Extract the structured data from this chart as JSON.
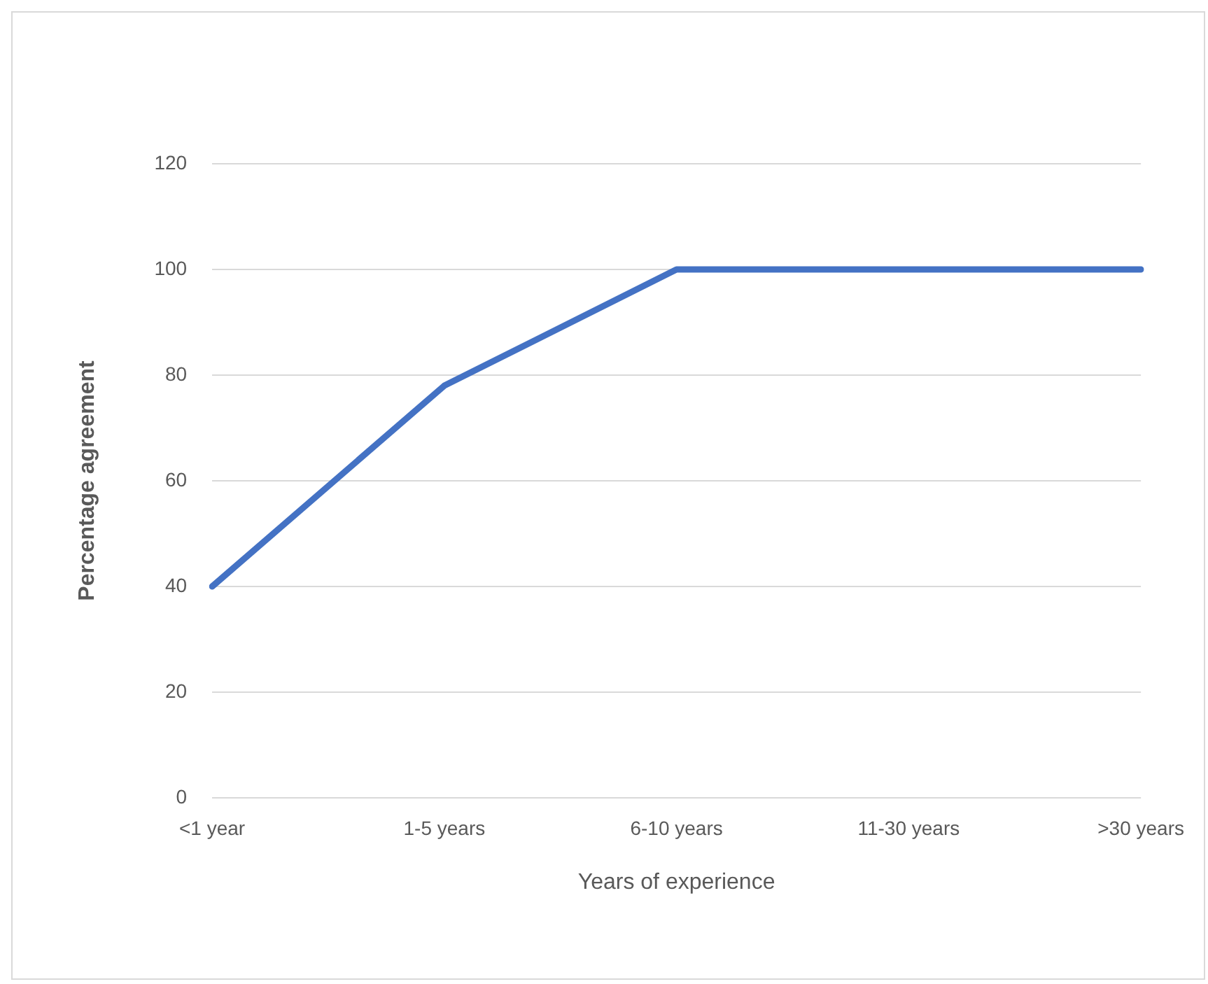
{
  "chart_data": {
    "type": "line",
    "xlabel": "Years of experience",
    "ylabel": "Percentage agreement",
    "categories": [
      "<1 year",
      "1-5 years",
      "6-10 years",
      "11-30 years",
      ">30 years"
    ],
    "series": [
      {
        "color": "#4472c4",
        "values": [
          40,
          78,
          100,
          100,
          100
        ]
      }
    ],
    "ylim": [
      0,
      120
    ],
    "yticks": [
      0,
      20,
      40,
      60,
      80,
      100,
      120
    ],
    "grid": "y",
    "legend": false,
    "marker": "none",
    "line_style": "solid"
  }
}
